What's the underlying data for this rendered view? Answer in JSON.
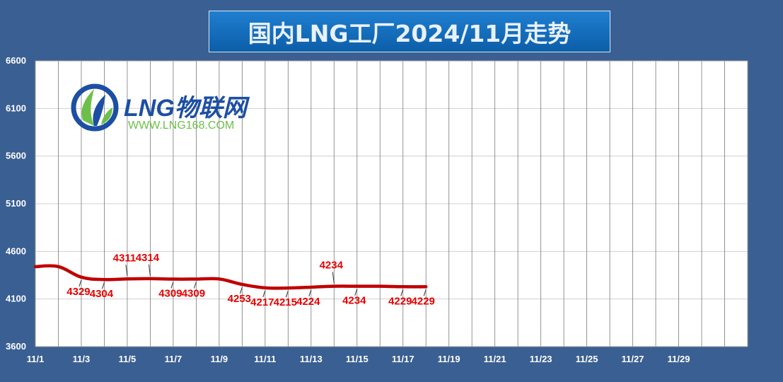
{
  "chart_data": {
    "type": "line",
    "title": "国内LNG工厂2024/11月走势",
    "xlabel": "",
    "ylabel": "",
    "ylim": [
      3600,
      6600
    ],
    "yticks": [
      "6600",
      "6100",
      "5600",
      "5100",
      "4600",
      "4100",
      "3600"
    ],
    "xticks": [
      "11/1",
      "11/3",
      "11/5",
      "11/7",
      "11/9",
      "11/11",
      "11/13",
      "11/15",
      "11/17",
      "11/19",
      "11/21",
      "11/23",
      "11/25",
      "11/27",
      "11/29"
    ],
    "days": 31,
    "grid": true,
    "series": [
      {
        "color": "#c00000",
        "points": [
          {
            "x": "11/1",
            "y": 4440
          },
          {
            "x": "11/2",
            "y": 4440
          },
          {
            "x": "11/3",
            "y": 4329
          },
          {
            "x": "11/4",
            "y": 4304
          },
          {
            "x": "11/5",
            "y": 4311
          },
          {
            "x": "11/6",
            "y": 4314
          },
          {
            "x": "11/7",
            "y": 4309
          },
          {
            "x": "11/8",
            "y": 4309
          },
          {
            "x": "11/9",
            "y": 4310
          },
          {
            "x": "11/10",
            "y": 4253
          },
          {
            "x": "11/11",
            "y": 4217
          },
          {
            "x": "11/12",
            "y": 4215
          },
          {
            "x": "11/13",
            "y": 4224
          },
          {
            "x": "11/14",
            "y": 4234
          },
          {
            "x": "11/15",
            "y": 4234
          },
          {
            "x": "11/16",
            "y": 4234
          },
          {
            "x": "11/17",
            "y": 4229
          },
          {
            "x": "11/18",
            "y": 4229
          }
        ]
      }
    ],
    "data_labels": [
      {
        "x": "11/3",
        "text": "4329",
        "pos": "below"
      },
      {
        "x": "11/4",
        "text": "4304",
        "pos": "below"
      },
      {
        "x": "11/5",
        "text": "4311",
        "pos": "above"
      },
      {
        "x": "11/6",
        "text": "4314",
        "pos": "above"
      },
      {
        "x": "11/7",
        "text": "4309",
        "pos": "below"
      },
      {
        "x": "11/8",
        "text": "4309",
        "pos": "below"
      },
      {
        "x": "11/10",
        "text": "4253",
        "pos": "below"
      },
      {
        "x": "11/11",
        "text": "4217",
        "pos": "below"
      },
      {
        "x": "11/12",
        "text": "4215",
        "pos": "below"
      },
      {
        "x": "11/13",
        "text": "4224",
        "pos": "below"
      },
      {
        "x": "11/14",
        "text": "4234",
        "pos": "above"
      },
      {
        "x": "11/15",
        "text": "4234",
        "pos": "below"
      },
      {
        "x": "11/17",
        "text": "4229",
        "pos": "below"
      },
      {
        "x": "11/18",
        "text": "4229",
        "pos": "below"
      }
    ]
  },
  "logo": {
    "name": "LNG物联网",
    "url": "WWW.LNG168.COM",
    "colors": {
      "primary": "#1c4fa3",
      "accent": "#6cc04a"
    }
  },
  "colors": {
    "background": "#3a5f92",
    "plot": "#ffffff",
    "line": "#c00000",
    "label": "#e60000",
    "title_bg": "#1470c4"
  }
}
